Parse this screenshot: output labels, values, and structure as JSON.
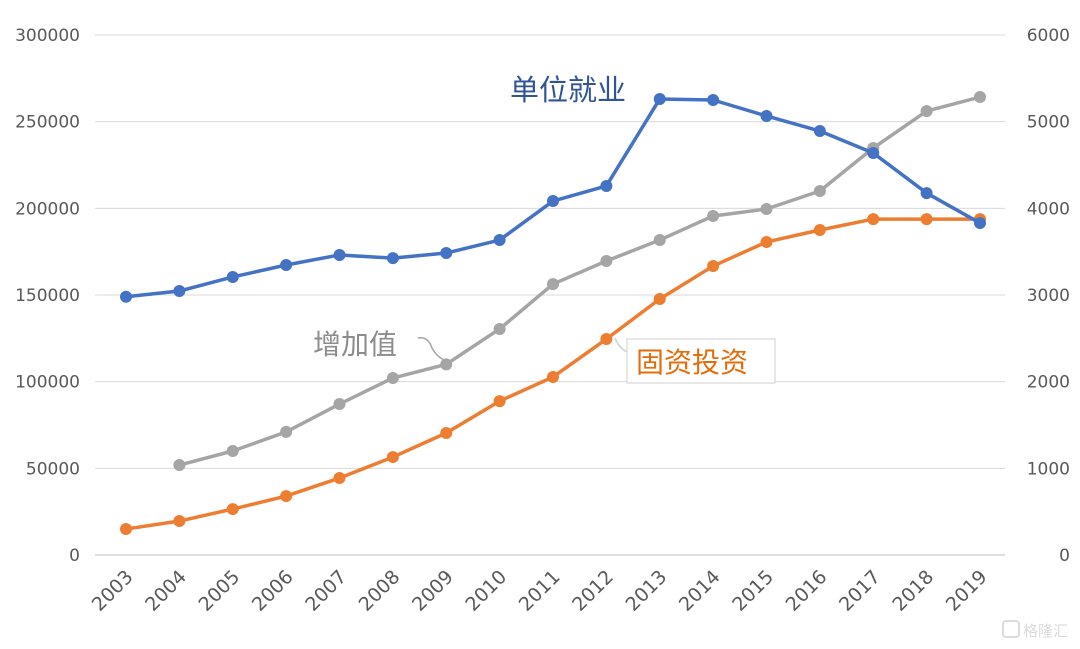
{
  "chart_data": {
    "type": "line",
    "title": "",
    "xlabel": "",
    "ylabel": "",
    "x": [
      "2003",
      "2004",
      "2005",
      "2006",
      "2007",
      "2008",
      "2009",
      "2010",
      "2011",
      "2012",
      "2013",
      "2014",
      "2015",
      "2016",
      "2017",
      "2018",
      "2019"
    ],
    "ylim": [
      0,
      300000
    ],
    "y_ticks": [
      "0",
      "50000",
      "100000",
      "150000",
      "200000",
      "250000",
      "300000"
    ],
    "y2lim": [
      0,
      6000
    ],
    "y2_ticks": [
      "0",
      "1000",
      "2000",
      "3000",
      "4000",
      "5000",
      "6000"
    ],
    "grid": true,
    "series": [
      {
        "name": "单位就业",
        "color": "#4472c4",
        "values": [
          149000,
          152300,
          160400,
          167300,
          173100,
          171300,
          174200,
          181700,
          204200,
          212900,
          263100,
          262500,
          253300,
          244600,
          231900,
          208800,
          191500
        ]
      },
      {
        "name": "增加值",
        "color": "#a5a5a5",
        "values": [
          null,
          51900,
          60000,
          71000,
          87100,
          102100,
          110000,
          130400,
          156300,
          169600,
          181700,
          195600,
          199600,
          210000,
          234800,
          256100,
          264200
        ]
      },
      {
        "name": "固资投资",
        "color": "#ed7d31",
        "values": [
          15000,
          19600,
          26500,
          34000,
          44400,
          56500,
          70400,
          88800,
          102700,
          124600,
          147700,
          166700,
          180600,
          187500,
          193800,
          193800,
          193800
        ]
      }
    ]
  },
  "watermark": "格隆汇"
}
